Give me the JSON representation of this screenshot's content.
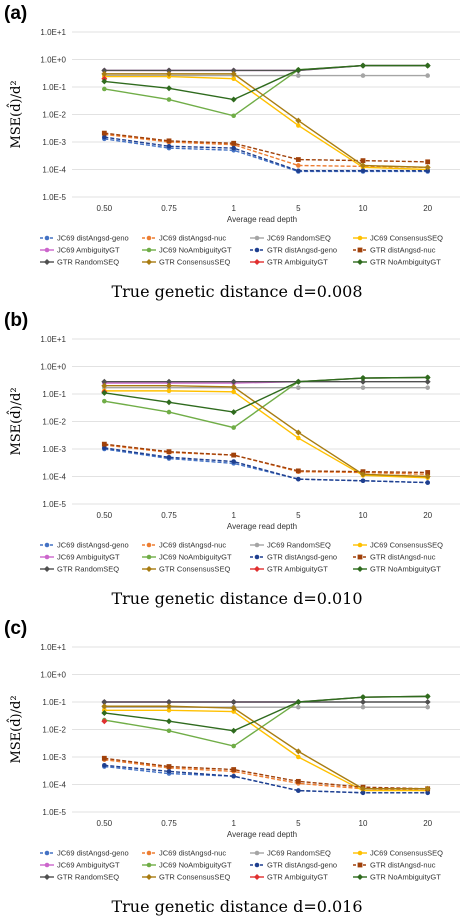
{
  "chart_data": [
    {
      "panel_label": "(a)",
      "type": "line",
      "scale_y": "log",
      "ylim": [
        1e-05,
        10
      ],
      "y_ticks": [
        "1.0E-5",
        "1.0E-4",
        "1.0E-3",
        "1.0E-2",
        "1.0E-1",
        "1.0E+0",
        "1.0E+1"
      ],
      "ylabel": "MSE(d̂)/d²",
      "xlabel": "Average read depth",
      "categories": [
        "0.50",
        "0.75",
        "1",
        "5",
        "10",
        "20"
      ],
      "caption": "True genetic distance d=0.008",
      "legend_position": "bottom",
      "series": [
        {
          "name": "JC69 distAngsd-geno",
          "color": "#4472c4",
          "dashed": true,
          "marker": "circle",
          "values": [
            0.0013,
            0.0006,
            0.0005,
            8.5e-05,
            8.5e-05,
            8.5e-05
          ]
        },
        {
          "name": "JC69 distAngsd-nuc",
          "color": "#ed7d31",
          "dashed": true,
          "marker": "circle",
          "values": [
            0.0019,
            0.001,
            0.0008,
            0.00014,
            0.00013,
            0.00012
          ]
        },
        {
          "name": "JC69 RandomSEQ",
          "color": "#a5a5a5",
          "dashed": false,
          "marker": "circle",
          "values": [
            0.26,
            0.26,
            0.26,
            0.26,
            0.26,
            0.26
          ]
        },
        {
          "name": "JC69 ConsensusSEQ",
          "color": "#ffc000",
          "dashed": false,
          "marker": "circle",
          "values": [
            0.24,
            0.24,
            0.2,
            0.004,
            0.00012,
            0.0001
          ]
        },
        {
          "name": "JC69 AmbiguityGT",
          "color": "#cc66cc",
          "dashed": false,
          "marker": "circle",
          "values": [
            0.4,
            0.4,
            0.4,
            0.4,
            0.6,
            0.6
          ]
        },
        {
          "name": "JC69 NoAmbiguityGT",
          "color": "#70ad47",
          "dashed": false,
          "marker": "circle",
          "values": [
            0.085,
            0.035,
            0.009,
            0.42,
            0.6,
            0.6
          ]
        },
        {
          "name": "GTR distAngsd-geno",
          "color": "#1f3f8f",
          "dashed": true,
          "marker": "circle",
          "values": [
            0.0015,
            0.0007,
            0.0006,
            9e-05,
            9e-05,
            9e-05
          ]
        },
        {
          "name": "GTR distAngsd-nuc",
          "color": "#a0410a",
          "dashed": true,
          "marker": "square",
          "values": [
            0.0021,
            0.0011,
            0.0009,
            0.00023,
            0.00021,
            0.00019
          ]
        },
        {
          "name": "GTR RandomSEQ",
          "color": "#505050",
          "dashed": false,
          "marker": "diamond",
          "values": [
            0.4,
            0.4,
            0.4,
            0.4,
            0.6,
            0.6
          ]
        },
        {
          "name": "GTR ConsensusSEQ",
          "color": "#a87c12",
          "dashed": false,
          "marker": "diamond",
          "values": [
            0.3,
            0.3,
            0.3,
            0.006,
            0.00014,
            0.00012
          ]
        },
        {
          "name": "GTR AmbiguityGT",
          "color": "#e03030",
          "dashed": false,
          "marker": "diamond",
          "values": [
            0.2,
            null,
            null,
            null,
            null,
            null
          ]
        },
        {
          "name": "GTR NoAmbiguityGT",
          "color": "#2f6b1e",
          "dashed": false,
          "marker": "diamond",
          "values": [
            0.16,
            0.09,
            0.035,
            0.42,
            0.6,
            0.6
          ]
        }
      ]
    },
    {
      "panel_label": "(b)",
      "type": "line",
      "scale_y": "log",
      "ylim": [
        1e-05,
        10
      ],
      "y_ticks": [
        "1.0E-5",
        "1.0E-4",
        "1.0E-3",
        "1.0E-2",
        "1.0E-1",
        "1.0E+0",
        "1.0E+1"
      ],
      "ylabel": "MSE(d̂)/d²",
      "xlabel": "Average read depth",
      "categories": [
        "0.50",
        "0.75",
        "1",
        "5",
        "10",
        "20"
      ],
      "caption": "True genetic distance d=0.010",
      "legend_position": "bottom",
      "series": [
        {
          "name": "JC69 distAngsd-geno",
          "color": "#4472c4",
          "dashed": true,
          "marker": "circle",
          "values": [
            0.001,
            0.00045,
            0.0003,
            8e-05,
            7e-05,
            6e-05
          ]
        },
        {
          "name": "JC69 distAngsd-nuc",
          "color": "#ed7d31",
          "dashed": true,
          "marker": "circle",
          "values": [
            0.0014,
            0.00075,
            0.0006,
            0.00015,
            0.00014,
            0.00012
          ]
        },
        {
          "name": "JC69 RandomSEQ",
          "color": "#a5a5a5",
          "dashed": false,
          "marker": "circle",
          "values": [
            0.17,
            0.17,
            0.17,
            0.17,
            0.17,
            0.17
          ]
        },
        {
          "name": "JC69 ConsensusSEQ",
          "color": "#ffc000",
          "dashed": false,
          "marker": "circle",
          "values": [
            0.13,
            0.13,
            0.12,
            0.0025,
            0.00011,
            9e-05
          ]
        },
        {
          "name": "JC69 AmbiguityGT",
          "color": "#cc66cc",
          "dashed": false,
          "marker": "circle",
          "values": [
            0.25,
            0.25,
            0.25,
            0.28,
            0.38,
            0.4
          ]
        },
        {
          "name": "JC69 NoAmbiguityGT",
          "color": "#70ad47",
          "dashed": false,
          "marker": "circle",
          "values": [
            0.055,
            0.022,
            0.006,
            0.28,
            0.38,
            0.4
          ]
        },
        {
          "name": "GTR distAngsd-geno",
          "color": "#1f3f8f",
          "dashed": true,
          "marker": "circle",
          "values": [
            0.0011,
            0.0005,
            0.00035,
            8e-05,
            7e-05,
            6e-05
          ]
        },
        {
          "name": "GTR distAngsd-nuc",
          "color": "#a0410a",
          "dashed": true,
          "marker": "square",
          "values": [
            0.0015,
            0.0008,
            0.0006,
            0.00016,
            0.00015,
            0.00014
          ]
        },
        {
          "name": "GTR RandomSEQ",
          "color": "#505050",
          "dashed": false,
          "marker": "diamond",
          "values": [
            0.28,
            0.28,
            0.28,
            0.28,
            0.28,
            0.28
          ]
        },
        {
          "name": "GTR ConsensusSEQ",
          "color": "#a87c12",
          "dashed": false,
          "marker": "diamond",
          "values": [
            0.2,
            0.2,
            0.18,
            0.004,
            0.00012,
            0.0001
          ]
        },
        {
          "name": "GTR AmbiguityGT",
          "color": "#e03030",
          "dashed": false,
          "marker": "diamond",
          "values": [
            0.12,
            null,
            null,
            null,
            null,
            null
          ]
        },
        {
          "name": "GTR NoAmbiguityGT",
          "color": "#2f6b1e",
          "dashed": false,
          "marker": "diamond",
          "values": [
            0.11,
            0.05,
            0.022,
            0.28,
            0.38,
            0.4
          ]
        }
      ]
    },
    {
      "panel_label": "(c)",
      "type": "line",
      "scale_y": "log",
      "ylim": [
        1e-05,
        10
      ],
      "y_ticks": [
        "1.0E-5",
        "1.0E-4",
        "1.0E-3",
        "1.0E-2",
        "1.0E-1",
        "1.0E+0",
        "1.0E+1"
      ],
      "ylabel": "MSE(d̂)/d²",
      "xlabel": "Average read depth",
      "categories": [
        "0.50",
        "0.75",
        "1",
        "5",
        "10",
        "20"
      ],
      "caption": "True genetic distance d=0.016",
      "legend_position": "bottom",
      "series": [
        {
          "name": "JC69 distAngsd-geno",
          "color": "#4472c4",
          "dashed": true,
          "marker": "circle",
          "values": [
            0.00045,
            0.00025,
            0.0002,
            6e-05,
            5e-05,
            5e-05
          ]
        },
        {
          "name": "JC69 distAngsd-nuc",
          "color": "#ed7d31",
          "dashed": true,
          "marker": "circle",
          "values": [
            0.0008,
            0.0004,
            0.0003,
            0.00011,
            7e-05,
            6e-05
          ]
        },
        {
          "name": "JC69 RandomSEQ",
          "color": "#a5a5a5",
          "dashed": false,
          "marker": "circle",
          "values": [
            0.065,
            0.065,
            0.065,
            0.065,
            0.065,
            0.065
          ]
        },
        {
          "name": "JC69 ConsensusSEQ",
          "color": "#ffc000",
          "dashed": false,
          "marker": "circle",
          "values": [
            0.05,
            0.05,
            0.045,
            0.001,
            6e-05,
            6e-05
          ]
        },
        {
          "name": "JC69 AmbiguityGT",
          "color": "#cc66cc",
          "dashed": false,
          "marker": "circle",
          "values": [
            0.1,
            0.1,
            0.1,
            0.1,
            0.15,
            0.16
          ]
        },
        {
          "name": "JC69 NoAmbiguityGT",
          "color": "#70ad47",
          "dashed": false,
          "marker": "circle",
          "values": [
            0.022,
            0.009,
            0.0025,
            0.1,
            0.15,
            0.16
          ]
        },
        {
          "name": "GTR distAngsd-geno",
          "color": "#1f3f8f",
          "dashed": true,
          "marker": "circle",
          "values": [
            0.0005,
            0.0003,
            0.0002,
            6e-05,
            5e-05,
            5e-05
          ]
        },
        {
          "name": "GTR distAngsd-nuc",
          "color": "#a0410a",
          "dashed": true,
          "marker": "square",
          "values": [
            0.0009,
            0.00045,
            0.00035,
            0.00013,
            8e-05,
            7e-05
          ]
        },
        {
          "name": "GTR RandomSEQ",
          "color": "#505050",
          "dashed": false,
          "marker": "diamond",
          "values": [
            0.1,
            0.1,
            0.1,
            0.1,
            0.1,
            0.1
          ]
        },
        {
          "name": "GTR ConsensusSEQ",
          "color": "#a87c12",
          "dashed": false,
          "marker": "diamond",
          "values": [
            0.07,
            0.07,
            0.06,
            0.0016,
            7e-05,
            7e-05
          ]
        },
        {
          "name": "GTR AmbiguityGT",
          "color": "#e03030",
          "dashed": false,
          "marker": "diamond",
          "values": [
            0.02,
            null,
            null,
            null,
            null,
            null
          ]
        },
        {
          "name": "GTR NoAmbiguityGT",
          "color": "#2f6b1e",
          "dashed": false,
          "marker": "diamond",
          "values": [
            0.04,
            0.02,
            0.009,
            0.1,
            0.15,
            0.16
          ]
        }
      ]
    }
  ]
}
